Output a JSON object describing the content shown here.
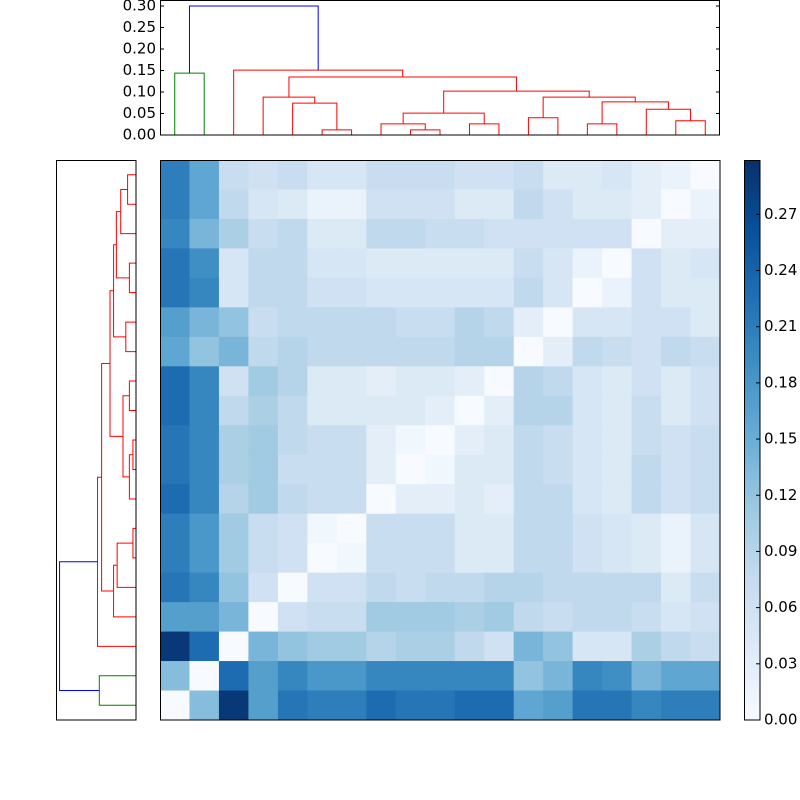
{
  "chart_data": {
    "type": "clustermap",
    "dendrogram": {
      "ylim": [
        0,
        0.314
      ],
      "yticks": [
        {
          "value": 0,
          "label": "0.00"
        },
        {
          "value": 0.05,
          "label": "0.05"
        },
        {
          "value": 0.1,
          "label": "0.10"
        },
        {
          "value": 0.15,
          "label": "0.15"
        },
        {
          "value": 0.2,
          "label": "0.20"
        },
        {
          "value": 0.25,
          "label": "0.25"
        },
        {
          "value": 0.3,
          "label": "0.30"
        }
      ],
      "links": [
        {
          "children": [
            0,
            1
          ],
          "height": 0.144,
          "color": "#008000"
        },
        {
          "children": [
            5,
            6
          ],
          "height": 0.012,
          "color": "#ff0000"
        },
        {
          "children": [
            8,
            9
          ],
          "height": 0.012,
          "color": "#ff0000"
        },
        {
          "children": [
            7,
            21
          ],
          "height": 0.026,
          "color": "#ff0000"
        },
        {
          "children": [
            10,
            11
          ],
          "height": 0.026,
          "color": "#ff0000"
        },
        {
          "children": [
            12,
            13
          ],
          "height": 0.04,
          "color": "#ff0000"
        },
        {
          "children": [
            14,
            15
          ],
          "height": 0.026,
          "color": "#ff0000"
        },
        {
          "children": [
            17,
            18
          ],
          "height": 0.033,
          "color": "#ff0000"
        },
        {
          "children": [
            16,
            26
          ],
          "height": 0.06,
          "color": "#ff0000"
        },
        {
          "children": [
            25,
            27
          ],
          "height": 0.077,
          "color": "#ff0000"
        },
        {
          "children": [
            24,
            28
          ],
          "height": 0.088,
          "color": "#ff0000"
        },
        {
          "children": [
            22,
            23
          ],
          "height": 0.051,
          "color": "#ff0000"
        },
        {
          "children": [
            30,
            29
          ],
          "height": 0.102,
          "color": "#ff0000"
        },
        {
          "children": [
            4,
            20
          ],
          "height": 0.074,
          "color": "#ff0000"
        },
        {
          "children": [
            3,
            32
          ],
          "height": 0.088,
          "color": "#ff0000"
        },
        {
          "children": [
            33,
            31
          ],
          "height": 0.135,
          "color": "#ff0000"
        },
        {
          "children": [
            2,
            34
          ],
          "height": 0.151,
          "color": "#ff0000"
        },
        {
          "children": [
            19,
            35
          ],
          "height": 0.3,
          "color": "#0000ff"
        }
      ]
    },
    "heatmap": {
      "clim": [
        0,
        0.299
      ],
      "colormap": [
        "#f7fbff",
        "#deebf7",
        "#c6dbef",
        "#9ecae1",
        "#6baed6",
        "#4292c6",
        "#2171b5",
        "#08519c",
        "#08306b"
      ],
      "colorbar_ticks": [
        {
          "value": 0,
          "label": "0.00"
        },
        {
          "value": 0.03,
          "label": "0.03"
        },
        {
          "value": 0.06,
          "label": "0.06"
        },
        {
          "value": 0.09,
          "label": "0.09"
        },
        {
          "value": 0.12,
          "label": "0.12"
        },
        {
          "value": 0.15,
          "label": "0.15"
        },
        {
          "value": 0.18,
          "label": "0.18"
        },
        {
          "value": 0.21,
          "label": "0.21"
        },
        {
          "value": 0.24,
          "label": "0.24"
        },
        {
          "value": 0.27,
          "label": "0.27"
        }
      ],
      "values": [
        [
          0.21,
          0.16,
          0.07,
          0.06,
          0.07,
          0.05,
          0.05,
          0.07,
          0.07,
          0.07,
          0.06,
          0.06,
          0.07,
          0.04,
          0.04,
          0.05,
          0.03,
          0.02,
          0
        ],
        [
          0.21,
          0.16,
          0.08,
          0.05,
          0.04,
          0.02,
          0.02,
          0.06,
          0.06,
          0.06,
          0.04,
          0.04,
          0.08,
          0.06,
          0.04,
          0.04,
          0.03,
          0,
          0.02
        ],
        [
          0.2,
          0.14,
          0.1,
          0.07,
          0.08,
          0.04,
          0.04,
          0.08,
          0.08,
          0.07,
          0.07,
          0.06,
          0.06,
          0.06,
          0.06,
          0.06,
          0,
          0.03,
          0.03
        ],
        [
          0.22,
          0.19,
          0.05,
          0.08,
          0.08,
          0.05,
          0.05,
          0.04,
          0.04,
          0.04,
          0.04,
          0.04,
          0.07,
          0.05,
          0.02,
          0,
          0.06,
          0.04,
          0.05
        ],
        [
          0.22,
          0.2,
          0.05,
          0.08,
          0.08,
          0.06,
          0.06,
          0.05,
          0.05,
          0.05,
          0.05,
          0.05,
          0.08,
          0.05,
          0,
          0.02,
          0.06,
          0.04,
          0.04
        ],
        [
          0.17,
          0.14,
          0.12,
          0.07,
          0.08,
          0.08,
          0.08,
          0.08,
          0.07,
          0.07,
          0.09,
          0.08,
          0.03,
          0,
          0.05,
          0.05,
          0.06,
          0.06,
          0.04
        ],
        [
          0.16,
          0.12,
          0.14,
          0.08,
          0.09,
          0.08,
          0.08,
          0.08,
          0.08,
          0.08,
          0.09,
          0.09,
          0,
          0.03,
          0.08,
          0.07,
          0.06,
          0.08,
          0.07
        ],
        [
          0.23,
          0.2,
          0.06,
          0.11,
          0.09,
          0.04,
          0.04,
          0.03,
          0.04,
          0.04,
          0.03,
          0,
          0.09,
          0.08,
          0.05,
          0.04,
          0.06,
          0.04,
          0.06
        ],
        [
          0.23,
          0.2,
          0.08,
          0.1,
          0.08,
          0.04,
          0.04,
          0.04,
          0.04,
          0.03,
          0,
          0.03,
          0.09,
          0.09,
          0.05,
          0.04,
          0.07,
          0.04,
          0.06
        ],
        [
          0.22,
          0.2,
          0.1,
          0.11,
          0.08,
          0.07,
          0.07,
          0.03,
          0.01,
          0,
          0.03,
          0.04,
          0.08,
          0.07,
          0.05,
          0.04,
          0.07,
          0.06,
          0.07
        ],
        [
          0.22,
          0.2,
          0.1,
          0.11,
          0.07,
          0.07,
          0.07,
          0.03,
          0,
          0.01,
          0.04,
          0.04,
          0.08,
          0.07,
          0.05,
          0.04,
          0.08,
          0.06,
          0.07
        ],
        [
          0.23,
          0.2,
          0.09,
          0.11,
          0.08,
          0.07,
          0.07,
          0,
          0.03,
          0.03,
          0.04,
          0.03,
          0.08,
          0.08,
          0.05,
          0.04,
          0.08,
          0.06,
          0.07
        ],
        [
          0.21,
          0.18,
          0.11,
          0.07,
          0.06,
          0.01,
          0,
          0.07,
          0.07,
          0.07,
          0.04,
          0.04,
          0.08,
          0.08,
          0.06,
          0.05,
          0.04,
          0.02,
          0.05
        ],
        [
          0.21,
          0.18,
          0.11,
          0.07,
          0.06,
          0,
          0.01,
          0.07,
          0.07,
          0.07,
          0.04,
          0.04,
          0.08,
          0.08,
          0.06,
          0.05,
          0.04,
          0.02,
          0.05
        ],
        [
          0.22,
          0.2,
          0.12,
          0.06,
          0,
          0.06,
          0.06,
          0.08,
          0.07,
          0.08,
          0.08,
          0.09,
          0.09,
          0.08,
          0.08,
          0.08,
          0.08,
          0.04,
          0.07
        ],
        [
          0.17,
          0.17,
          0.14,
          0,
          0.06,
          0.07,
          0.07,
          0.11,
          0.11,
          0.11,
          0.1,
          0.11,
          0.08,
          0.07,
          0.08,
          0.08,
          0.07,
          0.05,
          0.06
        ],
        [
          0.29,
          0.23,
          0,
          0.14,
          0.12,
          0.11,
          0.11,
          0.09,
          0.1,
          0.1,
          0.08,
          0.06,
          0.14,
          0.12,
          0.05,
          0.05,
          0.1,
          0.08,
          0.07
        ],
        [
          0.13,
          0,
          0.23,
          0.17,
          0.2,
          0.18,
          0.18,
          0.2,
          0.2,
          0.2,
          0.2,
          0.2,
          0.12,
          0.14,
          0.2,
          0.19,
          0.14,
          0.16,
          0.16
        ],
        [
          0,
          0.13,
          0.29,
          0.17,
          0.22,
          0.21,
          0.21,
          0.23,
          0.22,
          0.22,
          0.23,
          0.23,
          0.16,
          0.17,
          0.22,
          0.22,
          0.2,
          0.21,
          0.21
        ]
      ]
    }
  }
}
